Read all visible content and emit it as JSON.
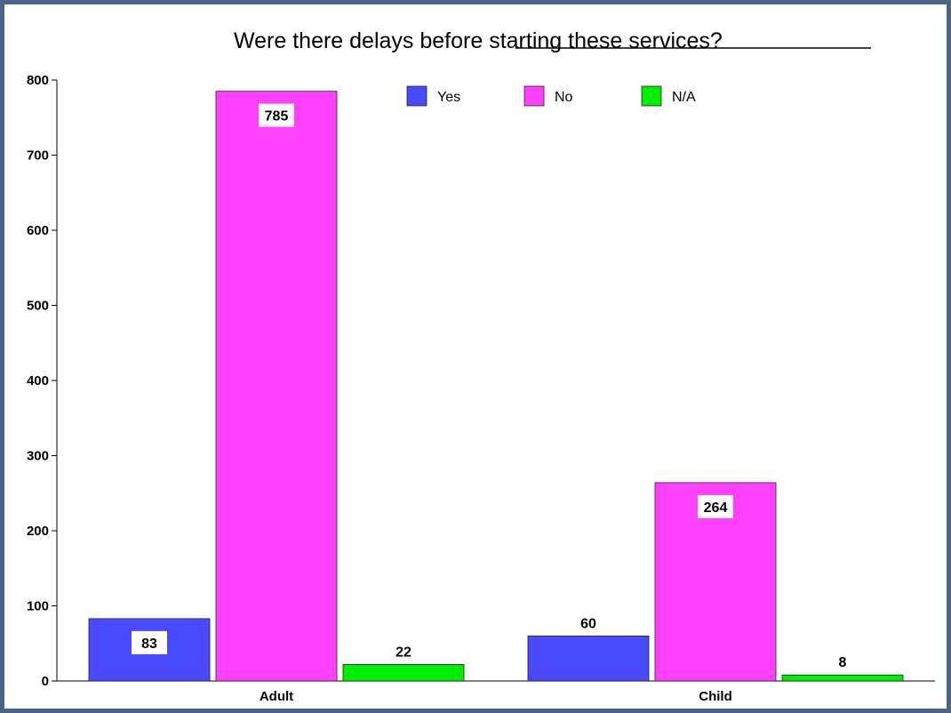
{
  "chart_data": {
    "type": "bar",
    "title": "Were there delays before starting these services?",
    "categories": [
      "Adult",
      "Child"
    ],
    "series": [
      {
        "name": "Yes",
        "color": "#4a4aff",
        "values": [
          83,
          60
        ]
      },
      {
        "name": "No",
        "color": "#ff40ff",
        "values": [
          785,
          264
        ]
      },
      {
        "name": "N/A",
        "color": "#00ee00",
        "values": [
          22,
          8
        ]
      }
    ],
    "ylim": [
      0,
      800
    ],
    "yticks": [
      0,
      100,
      200,
      300,
      400,
      500,
      600,
      700,
      800
    ],
    "xlabel": "",
    "ylabel": "",
    "legend_position": "top",
    "grid": false
  }
}
